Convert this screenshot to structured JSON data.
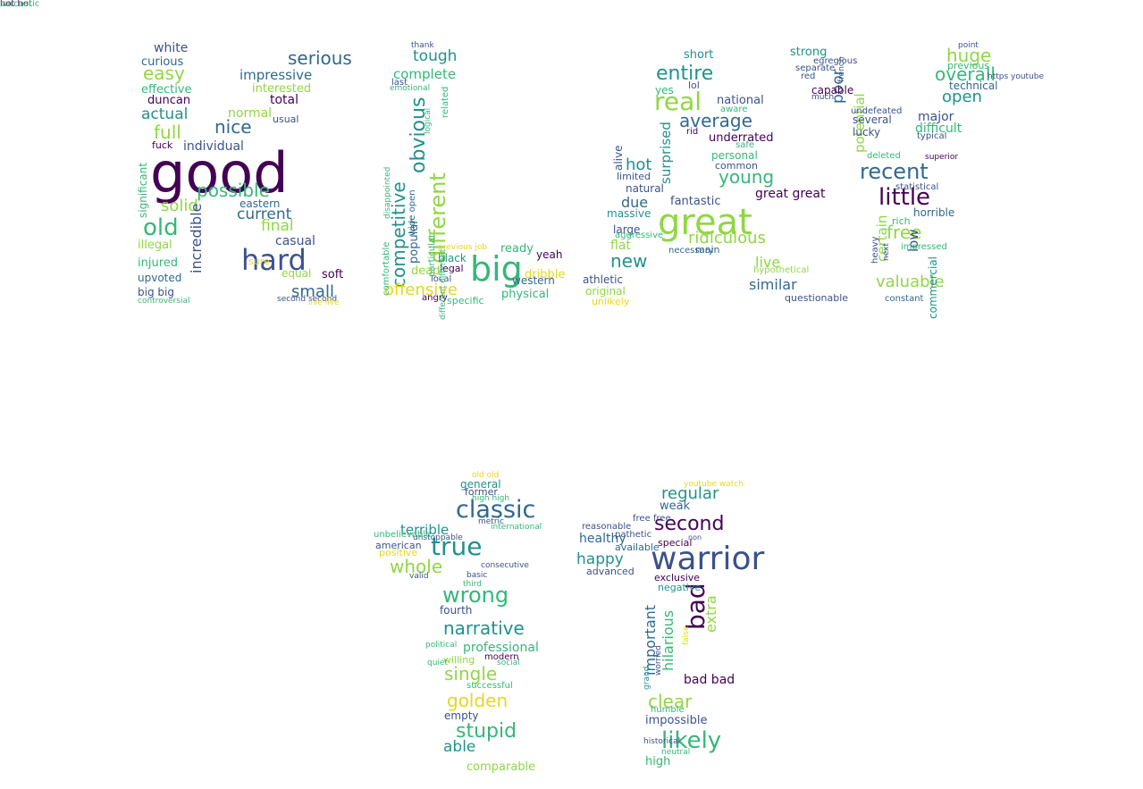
{
  "palette": {
    "dark_purple": "#440154",
    "indigo": "#3b528b",
    "blue": "#31688e",
    "teal": "#21918c",
    "green": "#35b779",
    "lime": "#90d743",
    "yellow": "#e6d81d"
  },
  "words": [
    {
      "text": "good",
      "color": "#440154"
    },
    {
      "text": "hard",
      "color": "#3b528b"
    },
    {
      "text": "serious",
      "color": "#31688e"
    },
    {
      "text": "easy",
      "color": "#90d743"
    },
    {
      "text": "full",
      "color": "#90d743"
    },
    {
      "text": "nice",
      "color": "#31688e"
    },
    {
      "text": "possible",
      "color": "#35b779"
    },
    {
      "text": "old",
      "color": "#35b779"
    },
    {
      "text": "solid",
      "color": "#90d743"
    },
    {
      "text": "actual",
      "color": "#21918c"
    },
    {
      "text": "impressive",
      "color": "#31688e"
    },
    {
      "text": "current",
      "color": "#31688e"
    },
    {
      "text": "final",
      "color": "#90d743"
    },
    {
      "text": "small",
      "color": "#31688e"
    },
    {
      "text": "incredible",
      "color": "#3b528b"
    },
    {
      "text": "white",
      "color": "#3b528b"
    },
    {
      "text": "curious",
      "color": "#31688e"
    },
    {
      "text": "effective",
      "color": "#35b779"
    },
    {
      "text": "duncan",
      "color": "#440154"
    },
    {
      "text": "individual",
      "color": "#3b528b"
    },
    {
      "text": "normal",
      "color": "#90d743"
    },
    {
      "text": "total",
      "color": "#440154"
    },
    {
      "text": "interested",
      "color": "#90d743"
    },
    {
      "text": "casual",
      "color": "#3b528b"
    },
    {
      "text": "soft",
      "color": "#440154"
    },
    {
      "text": "equal",
      "color": "#90d743"
    },
    {
      "text": "eastern",
      "color": "#31688e"
    },
    {
      "text": "injured",
      "color": "#35b779"
    },
    {
      "text": "illegal",
      "color": "#90d743"
    },
    {
      "text": "upvoted",
      "color": "#31688e"
    },
    {
      "text": "big big",
      "color": "#3b528b"
    },
    {
      "text": "controversial",
      "color": "#35b779"
    },
    {
      "text": "usual",
      "color": "#3b528b"
    },
    {
      "text": "significant",
      "color": "#35b779"
    },
    {
      "text": "fuck",
      "color": "#440154"
    },
    {
      "text": "sure",
      "color": "#e6d81d"
    },
    {
      "text": "second second",
      "color": "#3b528b"
    },
    {
      "text": "live live",
      "color": "#e6d81d"
    },
    {
      "text": "big",
      "color": "#35b779"
    },
    {
      "text": "different",
      "color": "#90d743"
    },
    {
      "text": "competitive",
      "color": "#21918c"
    },
    {
      "text": "obvious",
      "color": "#21918c"
    },
    {
      "text": "offensive",
      "color": "#e6d81d"
    },
    {
      "text": "tough",
      "color": "#21918c"
    },
    {
      "text": "complete",
      "color": "#35b779"
    },
    {
      "text": "popular",
      "color": "#31688e"
    },
    {
      "text": "dead",
      "color": "#90d743"
    },
    {
      "text": "black",
      "color": "#21918c"
    },
    {
      "text": "legal",
      "color": "#440154"
    },
    {
      "text": "ready",
      "color": "#35b779"
    },
    {
      "text": "yeah",
      "color": "#440154"
    },
    {
      "text": "western",
      "color": "#31688e"
    },
    {
      "text": "physical",
      "color": "#35b779"
    },
    {
      "text": "dribble",
      "color": "#e6d81d"
    },
    {
      "text": "athletic",
      "color": "#3b528b"
    },
    {
      "text": "original",
      "color": "#90d743"
    },
    {
      "text": "unlikely",
      "color": "#e6d81d"
    },
    {
      "text": "specific",
      "color": "#35b779"
    },
    {
      "text": "angry",
      "color": "#440154"
    },
    {
      "text": "local",
      "color": "#3b528b"
    },
    {
      "text": "emotional",
      "color": "#35b779"
    },
    {
      "text": "last",
      "color": "#3b528b"
    },
    {
      "text": "related",
      "color": "#35b779"
    },
    {
      "text": "comfortable",
      "color": "#35b779"
    },
    {
      "text": "disappointed",
      "color": "#35b779"
    },
    {
      "text": "wide open",
      "color": "#31688e"
    },
    {
      "text": "particular",
      "color": "#35b779"
    },
    {
      "text": "different different",
      "color": "#35b779"
    },
    {
      "text": "logical",
      "color": "#35b779"
    },
    {
      "text": "previous job",
      "color": "#e6d81d"
    },
    {
      "text": "thank",
      "color": "#3b528b"
    },
    {
      "text": "great",
      "color": "#90d743"
    },
    {
      "text": "real",
      "color": "#90d743"
    },
    {
      "text": "entire",
      "color": "#21918c"
    },
    {
      "text": "average",
      "color": "#31688e"
    },
    {
      "text": "surprised",
      "color": "#21918c"
    },
    {
      "text": "hot",
      "color": "#21918c"
    },
    {
      "text": "new",
      "color": "#21918c"
    },
    {
      "text": "due",
      "color": "#31688e"
    },
    {
      "text": "ridiculous",
      "color": "#90d743"
    },
    {
      "text": "young",
      "color": "#35b779"
    },
    {
      "text": "live",
      "color": "#90d743"
    },
    {
      "text": "similar",
      "color": "#31688e"
    },
    {
      "text": "short",
      "color": "#21918c"
    },
    {
      "text": "yes",
      "color": "#35b779"
    },
    {
      "text": "lol",
      "color": "#3b528b"
    },
    {
      "text": "underrated",
      "color": "#440154"
    },
    {
      "text": "personal",
      "color": "#35b779"
    },
    {
      "text": "common",
      "color": "#3b528b"
    },
    {
      "text": "fantastic",
      "color": "#3b528b"
    },
    {
      "text": "great great",
      "color": "#440154"
    },
    {
      "text": "flat",
      "color": "#90d743"
    },
    {
      "text": "large",
      "color": "#3b528b"
    },
    {
      "text": "massive",
      "color": "#21918c"
    },
    {
      "text": "natural",
      "color": "#3b528b"
    },
    {
      "text": "limited",
      "color": "#3b528b"
    },
    {
      "text": "aware",
      "color": "#35b779"
    },
    {
      "text": "national",
      "color": "#3b528b"
    },
    {
      "text": "rid",
      "color": "#440154"
    },
    {
      "text": "safe",
      "color": "#35b779"
    },
    {
      "text": "hypothetical",
      "color": "#90d743"
    },
    {
      "text": "questionable",
      "color": "#3b528b"
    },
    {
      "text": "main",
      "color": "#31688e"
    },
    {
      "text": "aggressive",
      "color": "#35b779"
    },
    {
      "text": "necessary",
      "color": "#31688e"
    },
    {
      "text": "alive",
      "color": "#3b528b"
    },
    {
      "text": "recent",
      "color": "#31688e"
    },
    {
      "text": "little",
      "color": "#440154"
    },
    {
      "text": "free",
      "color": "#90d743"
    },
    {
      "text": "huge",
      "color": "#90d743"
    },
    {
      "text": "overall",
      "color": "#35b779"
    },
    {
      "text": "open",
      "color": "#21918c"
    },
    {
      "text": "poor",
      "color": "#31688e"
    },
    {
      "text": "potential",
      "color": "#90d743"
    },
    {
      "text": "strong",
      "color": "#21918c"
    },
    {
      "text": "major",
      "color": "#3b528b"
    },
    {
      "text": "difficult",
      "color": "#35b779"
    },
    {
      "text": "technical",
      "color": "#31688e"
    },
    {
      "text": "previous",
      "color": "#35b779"
    },
    {
      "text": "valuable",
      "color": "#90d743"
    },
    {
      "text": "low",
      "color": "#3b528b"
    },
    {
      "text": "certain",
      "color": "#90d743"
    },
    {
      "text": "horrible",
      "color": "#31688e"
    },
    {
      "text": "rich",
      "color": "#35b779"
    },
    {
      "text": "commercial",
      "color": "#21918c"
    },
    {
      "text": "several",
      "color": "#3b528b"
    },
    {
      "text": "lucky",
      "color": "#3b528b"
    },
    {
      "text": "capable",
      "color": "#440154"
    },
    {
      "text": "red",
      "color": "#3b528b"
    },
    {
      "text": "separate",
      "color": "#3b528b"
    },
    {
      "text": "deleted",
      "color": "#35b779"
    },
    {
      "text": "undefeated",
      "color": "#3b528b"
    },
    {
      "text": "statistical",
      "color": "#3b528b"
    },
    {
      "text": "impressed",
      "color": "#35b779"
    },
    {
      "text": "constant",
      "color": "#31688e"
    },
    {
      "text": "heavy",
      "color": "#3b528b"
    },
    {
      "text": "typical",
      "color": "#3b528b"
    },
    {
      "text": "superior",
      "color": "#440154"
    },
    {
      "text": "egregious",
      "color": "#3b528b"
    },
    {
      "text": "much",
      "color": "#3b528b"
    },
    {
      "text": "french",
      "color": "#3b528b"
    },
    {
      "text": "https youtube",
      "color": "#3b528b"
    },
    {
      "text": "point",
      "color": "#3b528b"
    },
    {
      "text": "next",
      "color": "#3b528b"
    },
    {
      "text": "classic",
      "color": "#31688e"
    },
    {
      "text": "true",
      "color": "#21918c"
    },
    {
      "text": "wrong",
      "color": "#35b779"
    },
    {
      "text": "whole",
      "color": "#90d743"
    },
    {
      "text": "terrible",
      "color": "#21918c"
    },
    {
      "text": "narrative",
      "color": "#21918c"
    },
    {
      "text": "single",
      "color": "#90d743"
    },
    {
      "text": "golden",
      "color": "#e6d81d"
    },
    {
      "text": "stupid",
      "color": "#35b779"
    },
    {
      "text": "able",
      "color": "#21918c"
    },
    {
      "text": "general",
      "color": "#21918c"
    },
    {
      "text": "former",
      "color": "#3b528b"
    },
    {
      "text": "positive",
      "color": "#e6d81d"
    },
    {
      "text": "american",
      "color": "#3b528b"
    },
    {
      "text": "fourth",
      "color": "#3b528b"
    },
    {
      "text": "professional",
      "color": "#35b779"
    },
    {
      "text": "willing",
      "color": "#90d743"
    },
    {
      "text": "modern",
      "color": "#440154"
    },
    {
      "text": "social",
      "color": "#35b779"
    },
    {
      "text": "empty",
      "color": "#3b528b"
    },
    {
      "text": "successful",
      "color": "#35b779"
    },
    {
      "text": "comparable",
      "color": "#90d743"
    },
    {
      "text": "third",
      "color": "#35b779"
    },
    {
      "text": "basic",
      "color": "#3b528b"
    },
    {
      "text": "unstoppable",
      "color": "#3b528b"
    },
    {
      "text": "international",
      "color": "#35b779"
    },
    {
      "text": "metric",
      "color": "#3b528b"
    },
    {
      "text": "high high",
      "color": "#35b779"
    },
    {
      "text": "consecutive",
      "color": "#3b528b"
    },
    {
      "text": "political",
      "color": "#35b779"
    },
    {
      "text": "quiet",
      "color": "#35b779"
    },
    {
      "text": "valid",
      "color": "#3b528b"
    },
    {
      "text": "unbelievable",
      "color": "#35b779"
    },
    {
      "text": "old old",
      "color": "#e6d81d"
    },
    {
      "text": "warrior",
      "color": "#3b528b"
    },
    {
      "text": "bad",
      "color": "#440154"
    },
    {
      "text": "second",
      "color": "#440154"
    },
    {
      "text": "regular",
      "color": "#21918c"
    },
    {
      "text": "happy",
      "color": "#21918c"
    },
    {
      "text": "healthy",
      "color": "#31688e"
    },
    {
      "text": "extra",
      "color": "#90d743"
    },
    {
      "text": "hilarious",
      "color": "#35b779"
    },
    {
      "text": "important",
      "color": "#31688e"
    },
    {
      "text": "clear",
      "color": "#90d743"
    },
    {
      "text": "likely",
      "color": "#35b779"
    },
    {
      "text": "high",
      "color": "#35b779"
    },
    {
      "text": "impossible",
      "color": "#3b528b"
    },
    {
      "text": "bad bad",
      "color": "#440154"
    },
    {
      "text": "weak",
      "color": "#31688e"
    },
    {
      "text": "special",
      "color": "#440154"
    },
    {
      "text": "available",
      "color": "#31688e"
    },
    {
      "text": "advanced",
      "color": "#3b528b"
    },
    {
      "text": "exclusive",
      "color": "#440154"
    },
    {
      "text": "negative",
      "color": "#21918c"
    },
    {
      "text": "reasonable",
      "color": "#3b528b"
    },
    {
      "text": "pathetic",
      "color": "#3b528b"
    },
    {
      "text": "free free",
      "color": "#3b528b"
    },
    {
      "text": "humble",
      "color": "#35b779"
    },
    {
      "text": "historical",
      "color": "#3b528b"
    },
    {
      "text": "neutral",
      "color": "#35b779"
    },
    {
      "text": "grand",
      "color": "#21918c"
    },
    {
      "text": "worried",
      "color": "#3b528b"
    },
    {
      "text": "false",
      "color": "#e6d81d"
    },
    {
      "text": "non",
      "color": "#3b528b"
    },
    {
      "text": "youtube watch",
      "color": "#e6d81d"
    },
    {
      "text": "hot hot",
      "color": "#440154"
    },
    {
      "text": "sarcastic",
      "color": "#35b779"
    }
  ]
}
